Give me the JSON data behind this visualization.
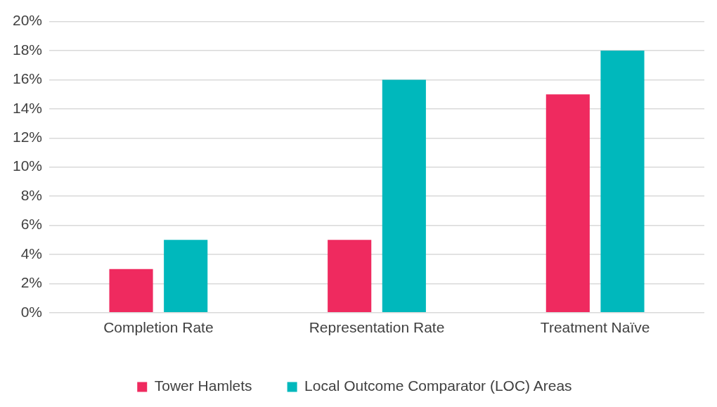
{
  "chart_data": {
    "type": "bar",
    "categories": [
      "Completion Rate",
      "Representation Rate",
      "Treatment Naïve"
    ],
    "series": [
      {
        "name": "Tower Hamlets",
        "color": "#ef2a5f",
        "values": [
          3,
          5,
          15
        ]
      },
      {
        "name": "Local Outcome Comparator (LOC) Areas",
        "color": "#00b8bc",
        "values": [
          5,
          16,
          18
        ]
      }
    ],
    "ylim": [
      0,
      20
    ],
    "yticks": [
      {
        "value": 0,
        "label": "0%"
      },
      {
        "value": 2,
        "label": "2%"
      },
      {
        "value": 4,
        "label": "4%"
      },
      {
        "value": 6,
        "label": "6%"
      },
      {
        "value": 8,
        "label": "8%"
      },
      {
        "value": 10,
        "label": "10%"
      },
      {
        "value": 12,
        "label": "12%"
      },
      {
        "value": 14,
        "label": "14%"
      },
      {
        "value": 16,
        "label": "16%"
      },
      {
        "value": 18,
        "label": "18%"
      },
      {
        "value": 20,
        "label": "20%"
      }
    ],
    "grid": "y",
    "legend": "bottom"
  }
}
